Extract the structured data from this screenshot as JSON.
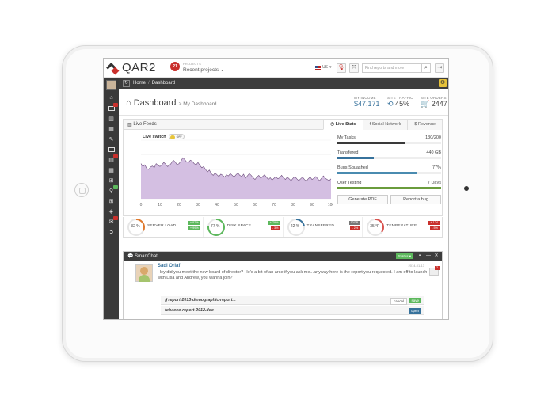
{
  "header": {
    "logo_text": "QAR2",
    "projects_badge": "21",
    "projects_label": "PROJECTS",
    "projects_value": "Recent projects",
    "language": "US",
    "search_placeholder": "Find reports and more"
  },
  "breadcrumb": {
    "home": "Home",
    "current": "Dashboard"
  },
  "page": {
    "title": "Dashboard",
    "subtitle": "My Dashboard",
    "stats": [
      {
        "label": "MY INCOME",
        "value": "$47,171"
      },
      {
        "label": "SITE TRAFFIC",
        "value": "45%"
      },
      {
        "label": "SITE ORDERS",
        "value": "2447"
      }
    ]
  },
  "feeds": {
    "title": "Live Feeds",
    "tabs": [
      "Live Stats",
      "Social Network",
      "Revenue"
    ],
    "live_switch_label": "Live switch",
    "live_switch_state": "OFF",
    "stats": [
      {
        "name": "My Tasks",
        "value": "130/200",
        "fraction": 0.65,
        "color": "#3a3a3a"
      },
      {
        "name": "Transfered",
        "value": "440 GB",
        "fraction": 0.35,
        "color": "#37729c"
      },
      {
        "name": "Bugs Squashed",
        "value": "77%",
        "fraction": 0.77,
        "color": "#4a8bb0"
      },
      {
        "name": "User Testing",
        "value": "7 Days",
        "fraction": 1.0,
        "color": "#6a9c3c"
      }
    ],
    "buttons": [
      "Generate PDF",
      "Report a bug"
    ]
  },
  "chart_data": {
    "type": "area",
    "xlabel": "",
    "ylabel": "",
    "xlim": [
      0,
      100
    ],
    "x_ticks": [
      0,
      10,
      20,
      30,
      40,
      50,
      60,
      70,
      80,
      90,
      100
    ],
    "y_relative": [
      0.6,
      0.55,
      0.58,
      0.52,
      0.5,
      0.54,
      0.56,
      0.53,
      0.6,
      0.57,
      0.55,
      0.58,
      0.62,
      0.59,
      0.55,
      0.57,
      0.61,
      0.66,
      0.63,
      0.58,
      0.6,
      0.64,
      0.7,
      0.67,
      0.63,
      0.62,
      0.66,
      0.64,
      0.6,
      0.58,
      0.62,
      0.57,
      0.53,
      0.55,
      0.5,
      0.46,
      0.49,
      0.43,
      0.4,
      0.44,
      0.41,
      0.38,
      0.42,
      0.4,
      0.37,
      0.41,
      0.39,
      0.43,
      0.4,
      0.37,
      0.41,
      0.44,
      0.4,
      0.38,
      0.42,
      0.35,
      0.39,
      0.43,
      0.4,
      0.36,
      0.33,
      0.37,
      0.4,
      0.35,
      0.38,
      0.41,
      0.37,
      0.33,
      0.36,
      0.32,
      0.35,
      0.38,
      0.34,
      0.36,
      0.4,
      0.36,
      0.33,
      0.37,
      0.34,
      0.31,
      0.35,
      0.38,
      0.34,
      0.31,
      0.34,
      0.37,
      0.33,
      0.3,
      0.34,
      0.37,
      0.33,
      0.35,
      0.38,
      0.34,
      0.31,
      0.35,
      0.39,
      0.35,
      0.33,
      0.31,
      0.34
    ],
    "fill_color": "#cdb4dd",
    "line_color": "#6a4a7a"
  },
  "gauges": [
    {
      "value": "32 %",
      "percent": 32,
      "label": "SERVER LOAD",
      "color": "#e07a2e",
      "tags": [
        [
          "+ 97%",
          "#5cb85c"
        ],
        [
          "+ 99%",
          "#5cb85c"
        ]
      ]
    },
    {
      "value": "77 %",
      "percent": 77,
      "label": "DISK SPACE",
      "color": "#5cb85c",
      "tags": [
        [
          "+ 79%",
          "#5cb85c"
        ],
        [
          "- 3%",
          "#c9302c"
        ]
      ]
    },
    {
      "value": "22 %",
      "percent": 22,
      "label": "TRANSFERED",
      "color": "#37729c",
      "tags": [
        [
          "10GB",
          "#777"
        ],
        [
          "- 2%",
          "#c9302c"
        ]
      ]
    },
    {
      "value": "35 °F",
      "percent": 35,
      "label": "TEMPERATURE",
      "color": "#d9534f",
      "tags": [
        [
          "+ 124",
          "#c9302c"
        ],
        [
          "- 5%",
          "#c9302c"
        ]
      ]
    }
  ],
  "chat": {
    "title": "SmartChat",
    "status_label": "Status",
    "message": {
      "name": "Sadi Orlaf",
      "time": "2014-01-13",
      "text": "Hey did you meet the new board of director? He's a bit of an arse if you ask me...anyway here is the report you requested. I am off to launch with Lisa and Andrew, you wanna join?"
    },
    "files": [
      {
        "name": "report-2013-demographic-report...",
        "buttons": [
          "cancel",
          "save"
        ]
      },
      {
        "name": "tobacco-report-2012.doc",
        "buttons": [
          "open"
        ]
      }
    ],
    "notification_count": "2"
  }
}
